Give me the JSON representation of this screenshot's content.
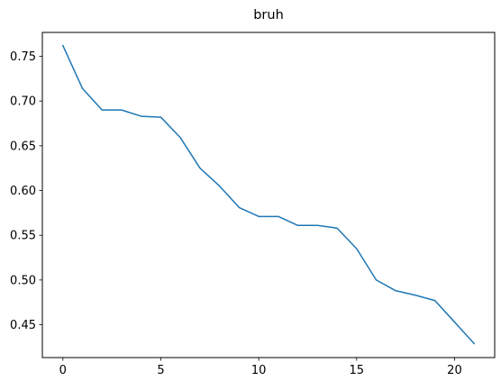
{
  "chart_data": {
    "type": "line",
    "title": "bruh",
    "xlabel": "",
    "ylabel": "",
    "xlim": [
      -1.05,
      22.05
    ],
    "ylim": [
      0.4133,
      0.7767
    ],
    "grid": false,
    "x_ticks": [
      0,
      5,
      10,
      15,
      20
    ],
    "y_ticks": [
      0.45,
      0.5,
      0.55,
      0.6,
      0.65,
      0.7,
      0.75
    ],
    "y_tick_labels": [
      "0.45",
      "0.50",
      "0.55",
      "0.60",
      "0.65",
      "0.70",
      "0.75"
    ],
    "series": [
      {
        "color": "#1f77b4",
        "x": [
          0,
          1,
          2,
          3,
          4,
          5,
          6,
          7,
          8,
          9,
          10,
          11,
          12,
          13,
          14,
          15,
          16,
          17,
          18,
          19,
          20,
          21
        ],
        "values": [
          0.762,
          0.714,
          0.69,
          0.69,
          0.683,
          0.682,
          0.659,
          0.625,
          0.605,
          0.581,
          0.571,
          0.571,
          0.561,
          0.561,
          0.558,
          0.535,
          0.5,
          0.488,
          0.483,
          0.477,
          0.453,
          0.429
        ]
      }
    ]
  }
}
